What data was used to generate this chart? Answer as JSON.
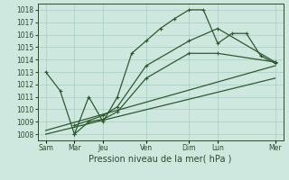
{
  "xlabel": "Pression niveau de la mer( hPa )",
  "bg_color": "#cee8e0",
  "grid_color": "#a8ccc0",
  "line_color": "#2d5a2d",
  "ylim": [
    1007.5,
    1018.5
  ],
  "yticks": [
    1008,
    1009,
    1010,
    1011,
    1012,
    1013,
    1014,
    1015,
    1016,
    1017,
    1018
  ],
  "xtick_labels": [
    "Sam",
    "Mar",
    "Jeu",
    "Ven",
    "Dim",
    "Lun",
    "Mer"
  ],
  "xtick_pos": [
    0,
    14,
    28,
    49,
    70,
    84,
    112
  ],
  "xlim": [
    -4,
    116
  ],
  "line1_x": [
    0,
    7,
    14,
    21,
    28,
    35,
    42,
    49,
    56,
    63,
    70,
    77,
    84,
    91,
    98,
    105,
    112
  ],
  "line1_y": [
    1013.0,
    1011.5,
    1008.0,
    1011.0,
    1009.0,
    1011.0,
    1014.5,
    1015.5,
    1016.5,
    1017.3,
    1018.0,
    1018.0,
    1015.3,
    1016.1,
    1016.1,
    1014.3,
    1013.7
  ],
  "line2_x": [
    14,
    21,
    28,
    35,
    49,
    70,
    84,
    112
  ],
  "line2_y": [
    1008.0,
    1009.0,
    1009.2,
    1009.8,
    1012.5,
    1014.5,
    1014.5,
    1013.8
  ],
  "line3_x": [
    14,
    28,
    35,
    49,
    70,
    84,
    112
  ],
  "line3_y": [
    1008.7,
    1009.5,
    1010.2,
    1013.5,
    1015.5,
    1016.5,
    1013.8
  ],
  "line4_x": [
    0,
    112
  ],
  "line4_y": [
    1008.3,
    1013.5
  ],
  "line5_x": [
    0,
    112
  ],
  "line5_y": [
    1008.0,
    1012.5
  ]
}
